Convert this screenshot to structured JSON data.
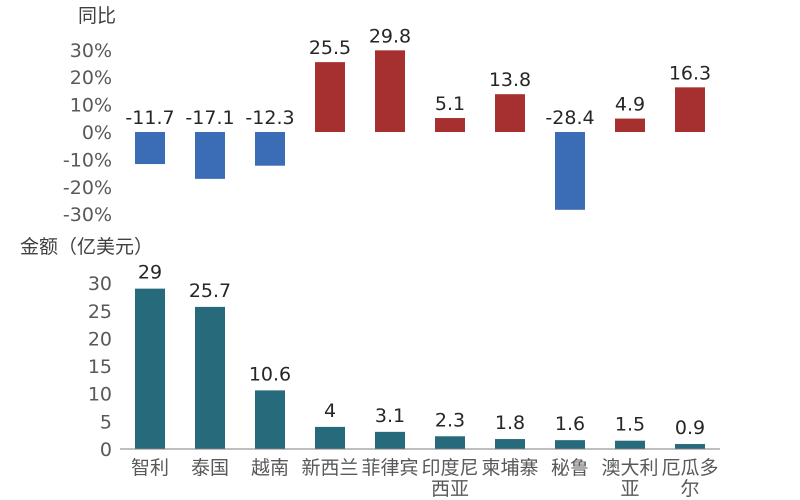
{
  "chart_data": [
    {
      "type": "bar",
      "ylabel": "同比",
      "categories": [
        "智利",
        "泰国",
        "越南",
        "新西兰",
        "菲律宾",
        "印度尼西亚",
        "柬埔寨",
        "秘鲁",
        "澳大利亚",
        "厄瓜多尔"
      ],
      "values": [
        -11.7,
        -17.1,
        -12.3,
        25.5,
        29.8,
        5.1,
        13.8,
        -28.4,
        4.9,
        16.3
      ],
      "ylim": [
        -30,
        30
      ],
      "ytick_labels": [
        "-30%",
        "-20%",
        "-10%",
        "0%",
        "10%",
        "20%",
        "30%"
      ],
      "colors": {
        "negative": "#3a6db5",
        "positive": "#a62f2f"
      },
      "grid": false
    },
    {
      "type": "bar",
      "ylabel": "金额（亿美元）",
      "categories": [
        "智利",
        "泰国",
        "越南",
        "新西兰",
        "菲律宾",
        "印度尼西亚",
        "柬埔寨",
        "秘鲁",
        "澳大利亚",
        "厄瓜多尔"
      ],
      "category_lines": [
        [
          "智利"
        ],
        [
          "泰国"
        ],
        [
          "越南"
        ],
        [
          "新西兰"
        ],
        [
          "菲律宾"
        ],
        [
          "印度尼",
          "西亚"
        ],
        [
          "柬埔寨"
        ],
        [
          "秘鲁"
        ],
        [
          "澳大利",
          "亚"
        ],
        [
          "厄瓜多",
          "尔"
        ]
      ],
      "values": [
        29,
        25.7,
        10.6,
        4,
        3.1,
        2.3,
        1.8,
        1.6,
        1.5,
        0.9
      ],
      "ylim": [
        0,
        30
      ],
      "ytick_labels": [
        "0",
        "5",
        "10",
        "15",
        "20",
        "25",
        "30"
      ],
      "colors": {
        "bar": "#276a7c",
        "axis": "#7f7f7f"
      },
      "grid": false
    }
  ]
}
